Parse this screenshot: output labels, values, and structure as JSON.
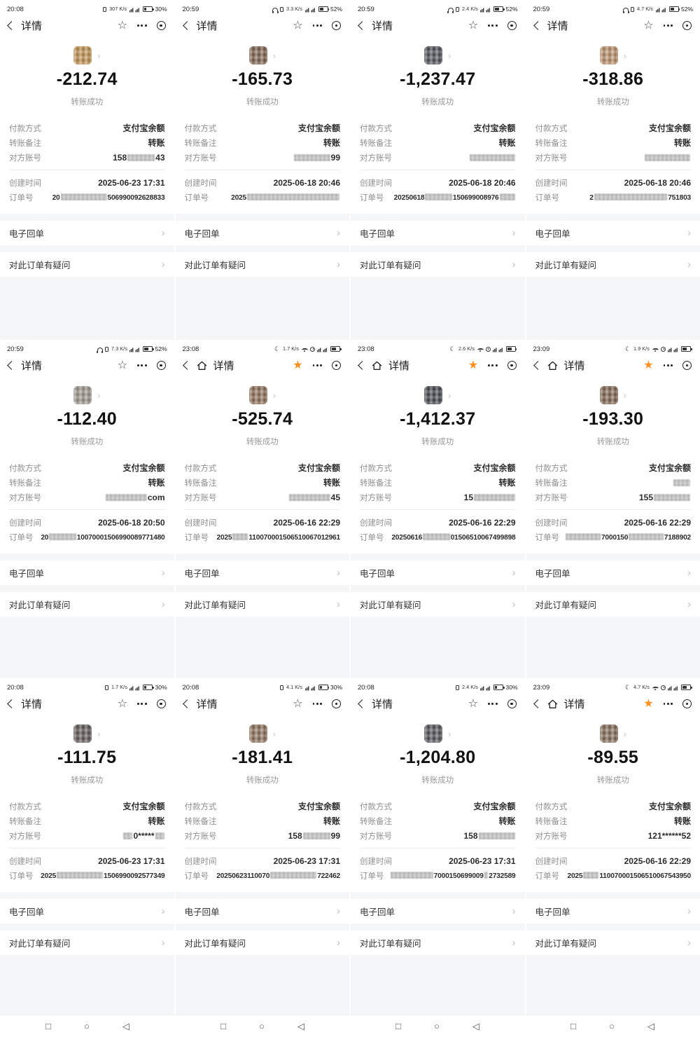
{
  "labels": {
    "nav_title": "详情",
    "status_success": "转账成功",
    "payment_method_label": "付款方式",
    "payment_method_value": "支付宝余额",
    "remark_label": "转账备注",
    "remark_value": "转账",
    "account_label": "对方账号",
    "created_label": "创建时间",
    "order_label": "订单号",
    "receipt_row": "电子回单",
    "question_row": "对此订单有疑问",
    "row_chevron": "›",
    "avatar_chevron": "›"
  },
  "icons": {
    "star_outline": "☆",
    "star_filled": "★",
    "moon": "☾",
    "android_recents": "□",
    "android_home": "○",
    "android_back": "◁"
  },
  "colors": {
    "accent_orange": "#ff8f1f",
    "bg_gray": "#f5f6f7",
    "text_dark": "#2b2b2b",
    "text_gray": "#8f8f8f"
  },
  "cards": [
    {
      "time": "20:08",
      "speed": "307 K/s",
      "battery": "30%",
      "battery_fill": 30,
      "moon": false,
      "headset": false,
      "vibrate": true,
      "wifi": false,
      "home_icon": false,
      "star_filled": false,
      "amount": "-212.74",
      "avatar_color": "#c28f4a",
      "account": [
        {
          "t": "158"
        },
        {
          "b": 6
        },
        {
          "t": "43"
        }
      ],
      "created": "2025-06-23 17:31",
      "order": [
        {
          "t": "20"
        },
        {
          "b": 12
        },
        {
          "t": "506990092628833"
        }
      ]
    },
    {
      "time": "20:59",
      "speed": "3.3 K/s",
      "battery": "52%",
      "battery_fill": 52,
      "moon": false,
      "headset": true,
      "vibrate": true,
      "wifi": false,
      "home_icon": false,
      "star_filled": false,
      "amount": "-165.73",
      "avatar_color": "#7b5b45",
      "account": [
        {
          "b": 8
        },
        {
          "t": "99"
        }
      ],
      "created": "2025-06-18 20:46",
      "order": [
        {
          "t": "2025"
        },
        {
          "b": 24
        }
      ]
    },
    {
      "time": "20:59",
      "speed": "2.4 K/s",
      "battery": "52%",
      "battery_fill": 52,
      "moon": false,
      "headset": true,
      "vibrate": true,
      "wifi": false,
      "home_icon": false,
      "star_filled": false,
      "amount": "-1,237.47",
      "avatar_color": "#474a52",
      "account": [
        {
          "b": 10
        }
      ],
      "created": "2025-06-18 20:46",
      "order": [
        {
          "t": "20250618"
        },
        {
          "b": 7
        },
        {
          "t": "150699008976"
        },
        {
          "b": 4
        }
      ]
    },
    {
      "time": "20:59",
      "speed": "4.7 K/s",
      "battery": "52%",
      "battery_fill": 52,
      "moon": false,
      "headset": true,
      "vibrate": true,
      "wifi": false,
      "home_icon": false,
      "star_filled": false,
      "amount": "-318.86",
      "avatar_color": "#bb8d66",
      "account": [
        {
          "b": 10
        }
      ],
      "created": "2025-06-18 20:46",
      "order": [
        {
          "t": "2"
        },
        {
          "b": 19
        },
        {
          "t": "751803"
        }
      ]
    },
    {
      "time": "20:59",
      "speed": "7.3 K/s",
      "battery": "52%",
      "battery_fill": 52,
      "moon": false,
      "headset": true,
      "vibrate": true,
      "wifi": false,
      "home_icon": false,
      "star_filled": false,
      "amount": "-112.40",
      "avatar_color": "#9b958a",
      "account": [
        {
          "b": 9
        },
        {
          "t": "com"
        }
      ],
      "created": "2025-06-18 20:50",
      "order": [
        {
          "t": "20"
        },
        {
          "b": 7
        },
        {
          "t": "10070001506990089771480"
        }
      ]
    },
    {
      "time": "23:08",
      "speed": "1.7 K/s",
      "battery": "",
      "battery_fill": 62,
      "moon": true,
      "headset": false,
      "vibrate": false,
      "wifi": true,
      "home_icon": true,
      "star_filled": true,
      "amount": "-525.74",
      "avatar_color": "#8b6a50",
      "account": [
        {
          "b": 9
        },
        {
          "t": "45"
        }
      ],
      "created": "2025-06-16 22:29",
      "order": [
        {
          "t": "2025"
        },
        {
          "b": 4
        },
        {
          "t": "110070001506510067012961"
        }
      ]
    },
    {
      "time": "23:08",
      "speed": "2.6 K/s",
      "battery": "",
      "battery_fill": 62,
      "moon": true,
      "headset": false,
      "vibrate": false,
      "wifi": true,
      "home_icon": true,
      "star_filled": true,
      "amount": "-1,412.37",
      "avatar_color": "#3c4046",
      "account": [
        {
          "t": "15"
        },
        {
          "b": 9
        }
      ],
      "created": "2025-06-16 22:29",
      "order": [
        {
          "t": "20250616"
        },
        {
          "b": 7
        },
        {
          "t": "01506510067499898"
        }
      ]
    },
    {
      "time": "23:09",
      "speed": "1.9 K/s",
      "battery": "",
      "battery_fill": 62,
      "moon": true,
      "headset": false,
      "vibrate": false,
      "wifi": true,
      "home_icon": true,
      "star_filled": true,
      "amount": "-193.30",
      "avatar_color": "#7e5f49",
      "account": [
        {
          "t": "155"
        },
        {
          "b": 8
        }
      ],
      "created": "2025-06-16 22:29",
      "remark_segments": [
        {
          "b": 4
        }
      ],
      "order": [
        {
          "b": 9
        },
        {
          "t": "7000150"
        },
        {
          "b": 9
        },
        {
          "t": "7188902"
        }
      ]
    },
    {
      "time": "20:08",
      "speed": "1.7 K/s",
      "battery": "30%",
      "battery_fill": 30,
      "moon": false,
      "headset": false,
      "vibrate": true,
      "wifi": false,
      "home_icon": false,
      "star_filled": false,
      "amount": "-111.75",
      "avatar_color": "#5a5250",
      "account": [
        {
          "b": 2
        },
        {
          "t": "0*****"
        },
        {
          "b": 2
        }
      ],
      "created": "2025-06-23 17:31",
      "order": [
        {
          "t": "2025"
        },
        {
          "b": 12
        },
        {
          "t": "1506990092577349"
        }
      ]
    },
    {
      "time": "20:08",
      "speed": "4.1 K/s",
      "battery": "30%",
      "battery_fill": 30,
      "moon": false,
      "headset": false,
      "vibrate": true,
      "wifi": false,
      "home_icon": false,
      "star_filled": false,
      "amount": "-181.41",
      "avatar_color": "#8a6b52",
      "account": [
        {
          "t": "158"
        },
        {
          "b": 6
        },
        {
          "t": "99"
        }
      ],
      "created": "2025-06-23 17:31",
      "order": [
        {
          "t": "20250623110070"
        },
        {
          "b": 12
        },
        {
          "t": "722462"
        }
      ]
    },
    {
      "time": "20:08",
      "speed": "2.4 K/s",
      "battery": "30%",
      "battery_fill": 30,
      "moon": false,
      "headset": false,
      "vibrate": true,
      "wifi": false,
      "home_icon": false,
      "star_filled": false,
      "amount": "-1,204.80",
      "avatar_color": "#4e4c52",
      "account": [
        {
          "t": "158"
        },
        {
          "b": 8
        }
      ],
      "created": "2025-06-23 17:31",
      "order": [
        {
          "b": 11
        },
        {
          "t": "7000150699009"
        },
        {
          "b": 1
        },
        {
          "t": "2732589"
        }
      ]
    },
    {
      "time": "23:09",
      "speed": "4.7 K/s",
      "battery": "",
      "battery_fill": 62,
      "moon": true,
      "headset": false,
      "vibrate": false,
      "wifi": true,
      "home_icon": true,
      "star_filled": true,
      "amount": "-89.55",
      "avatar_color": "#806650",
      "account": [
        {
          "t": "121******52"
        }
      ],
      "created": "2025-06-16 22:29",
      "order": [
        {
          "t": "2025"
        },
        {
          "b": 4
        },
        {
          "t": "110070001506510067543950"
        }
      ]
    }
  ]
}
